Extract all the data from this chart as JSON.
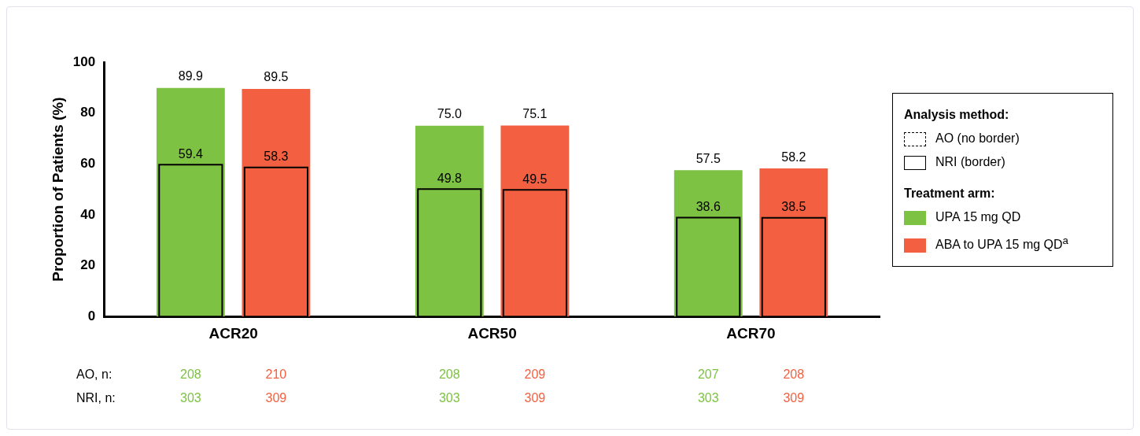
{
  "chart_data": {
    "type": "bar",
    "ylabel": "Proportion of Patients (%)",
    "categories": [
      "ACR20",
      "ACR50",
      "ACR70"
    ],
    "series": [
      {
        "color": "#7dc243",
        "values": [
          59.4,
          49.8,
          38.6
        ],
        "value_labels": [
          "59.4",
          "49.8",
          "38.6"
        ]
      },
      {
        "color": "#f26041",
        "values": [
          58.3,
          49.5,
          38.5
        ],
        "value_labels": [
          "58.3",
          "49.5",
          "38.5"
        ]
      },
      {
        "name": "UPA 15 mg QD",
        "color": "#7dc243",
        "values": [
          89.9,
          75.0,
          57.5
        ],
        "value_labels": [
          "89.9",
          "75.0",
          "57.5"
        ]
      },
      {
        "name": "ABA to UPA 15 mg QD$^{a}$",
        "color": "#f26041",
        "values": [
          89.5,
          75.1,
          58.2
        ],
        "value_labels": [
          "89.5",
          "75.1",
          "58.2"
        ]
      }
    ],
    "ylim": [
      0,
      100
    ],
    "yticks": [
      0,
      20,
      40,
      60,
      80,
      100
    ],
    "legend": "right",
    "legend_title": "Treatment arm:",
    "annotations": [
      "Analysis method:",
      "AO (no border)",
      "NRI (border)",
      "AO, n:",
      "NRI, n:",
      "208",
      "210",
      "208",
      "209",
      "207",
      "208",
      "303",
      "309",
      "303",
      "309",
      "303",
      "309"
    ]
  }
}
